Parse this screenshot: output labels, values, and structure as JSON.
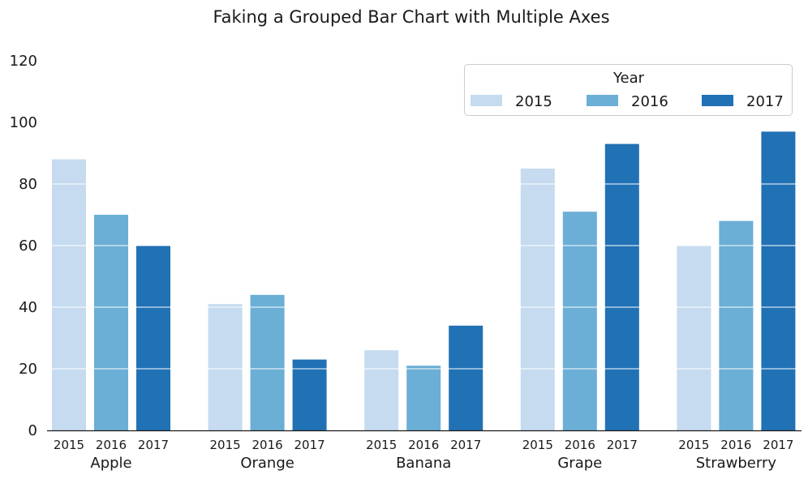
{
  "chart_data": {
    "type": "bar",
    "title": "Faking a Grouped Bar Chart with Multiple Axes",
    "categories": [
      "Apple",
      "Orange",
      "Banana",
      "Grape",
      "Strawberry"
    ],
    "series": [
      {
        "name": "2015",
        "color": "#c6dbef",
        "values": [
          88,
          41,
          26,
          85,
          60
        ]
      },
      {
        "name": "2016",
        "color": "#6baed6",
        "values": [
          70,
          44,
          21,
          71,
          68
        ]
      },
      {
        "name": "2017",
        "color": "#2171b5",
        "values": [
          60,
          23,
          34,
          93,
          97
        ]
      }
    ],
    "ylim": [
      0,
      120
    ],
    "yticks": [
      0,
      20,
      40,
      60,
      80,
      100,
      120
    ],
    "gridlines": [
      20,
      40,
      60,
      80,
      100
    ],
    "grid_color": "#ffffff",
    "legend": {
      "title": "Year",
      "placement": "top-right"
    },
    "xlabel": "",
    "ylabel": ""
  }
}
